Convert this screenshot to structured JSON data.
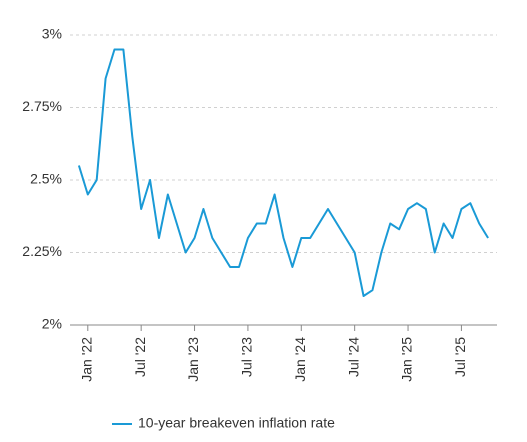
{
  "chart_data": {
    "type": "line",
    "x": [
      "2021-12",
      "2022-01",
      "2022-02",
      "2022-03",
      "2022-04",
      "2022-05",
      "2022-06",
      "2022-07",
      "2022-08",
      "2022-09",
      "2022-10",
      "2022-11",
      "2022-12",
      "2023-01",
      "2023-02",
      "2023-03",
      "2023-04",
      "2023-05",
      "2023-06",
      "2023-07",
      "2023-08",
      "2023-09",
      "2023-10",
      "2023-11",
      "2023-12",
      "2024-01",
      "2024-02",
      "2024-03",
      "2024-04",
      "2024-05",
      "2024-06",
      "2024-07",
      "2024-08",
      "2024-09",
      "2024-10",
      "2024-11",
      "2024-12",
      "2025-01",
      "2025-02",
      "2025-03",
      "2025-04",
      "2025-05",
      "2025-06",
      "2025-07",
      "2025-08",
      "2025-09",
      "2025-10"
    ],
    "series": [
      {
        "name": "10-year breakeven inflation rate",
        "color": "#1a9ad6",
        "values": [
          2.55,
          2.45,
          2.5,
          2.85,
          2.95,
          2.95,
          2.65,
          2.4,
          2.5,
          2.3,
          2.45,
          2.35,
          2.25,
          2.3,
          2.4,
          2.3,
          2.25,
          2.2,
          2.2,
          2.3,
          2.35,
          2.35,
          2.45,
          2.3,
          2.2,
          2.3,
          2.3,
          2.35,
          2.4,
          2.35,
          2.3,
          2.25,
          2.1,
          2.12,
          2.25,
          2.35,
          2.33,
          2.4,
          2.42,
          2.4,
          2.25,
          2.35,
          2.3,
          2.4,
          2.42,
          2.35,
          2.3
        ]
      }
    ],
    "xlim": [
      "2021-11",
      "2025-11"
    ],
    "xticks": [
      {
        "value": "2022-01",
        "label": "Jan '22"
      },
      {
        "value": "2022-07",
        "label": "Jul '22"
      },
      {
        "value": "2023-01",
        "label": "Jan '23"
      },
      {
        "value": "2023-07",
        "label": "Jul '23"
      },
      {
        "value": "2024-01",
        "label": "Jan '24"
      },
      {
        "value": "2024-07",
        "label": "Jul '24"
      },
      {
        "value": "2025-01",
        "label": "Jan '25"
      },
      {
        "value": "2025-07",
        "label": "Jul '25"
      }
    ],
    "ylim": [
      2,
      3
    ],
    "yticks": [
      {
        "value": 2,
        "label": "2%"
      },
      {
        "value": 2.25,
        "label": "2.25%"
      },
      {
        "value": 2.5,
        "label": "2.5%"
      },
      {
        "value": 2.75,
        "label": "2.75%"
      },
      {
        "value": 3,
        "label": "3%"
      }
    ],
    "grid": true,
    "legend": "bottom"
  }
}
